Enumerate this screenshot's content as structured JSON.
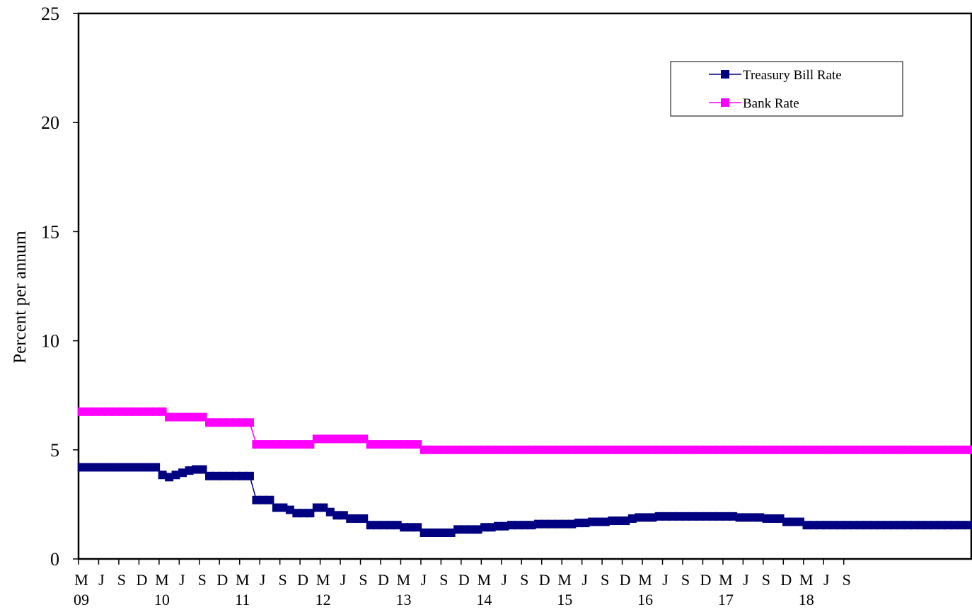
{
  "chart_data": {
    "type": "line",
    "title": "",
    "xlabel": "",
    "ylabel": "Percent per annum",
    "ylim": [
      0,
      25
    ],
    "yticks": [
      "0",
      "5",
      "10",
      "15",
      "20",
      "25"
    ],
    "grid": false,
    "legend_position": "top-right",
    "x_start": "2009-03",
    "x_step_months": 1,
    "month_ticks": [
      "M",
      "J",
      "S",
      "D",
      "M",
      "J",
      "S",
      "D",
      "M",
      "J",
      "S",
      "D",
      "M",
      "J",
      "S",
      "D",
      "M",
      "J",
      "S",
      "D",
      "M",
      "J",
      "S",
      "D",
      "M",
      "J",
      "S",
      "D",
      "M",
      "J",
      "S",
      "D",
      "M",
      "J",
      "S",
      "D",
      "M",
      "J",
      "S"
    ],
    "year_ticks": [
      "09",
      "10",
      "11",
      "12",
      "13",
      "14",
      "15",
      "16",
      "17",
      "18"
    ],
    "series": [
      {
        "name": "Treasury Bill Rate",
        "color": "#000080",
        "marker": "square",
        "values": [
          4.2,
          4.2,
          4.2,
          4.2,
          4.2,
          4.2,
          4.2,
          4.2,
          4.2,
          4.2,
          4.2,
          4.2,
          3.85,
          3.75,
          3.85,
          3.95,
          4.05,
          4.1,
          4.1,
          3.8,
          3.8,
          3.8,
          3.8,
          3.8,
          3.8,
          3.8,
          2.7,
          2.7,
          2.7,
          2.35,
          2.35,
          2.25,
          2.1,
          2.1,
          2.1,
          2.35,
          2.35,
          2.15,
          2.0,
          2.0,
          1.85,
          1.85,
          1.85,
          1.55,
          1.55,
          1.55,
          1.55,
          1.55,
          1.45,
          1.45,
          1.45,
          1.2,
          1.2,
          1.2,
          1.2,
          1.2,
          1.35,
          1.35,
          1.35,
          1.35,
          1.45,
          1.45,
          1.5,
          1.5,
          1.55,
          1.55,
          1.55,
          1.55,
          1.6,
          1.6,
          1.6,
          1.6,
          1.6,
          1.6,
          1.65,
          1.65,
          1.7,
          1.7,
          1.7,
          1.75,
          1.75,
          1.75,
          1.85,
          1.9,
          1.9,
          1.9,
          1.95,
          1.95,
          1.95,
          1.95,
          1.95,
          1.95,
          1.95,
          1.95,
          1.95,
          1.95,
          1.95,
          1.95,
          1.9,
          1.9,
          1.9,
          1.9,
          1.85,
          1.85,
          1.85,
          1.7,
          1.7,
          1.7,
          1.55,
          1.55,
          1.55,
          1.55,
          1.55,
          1.55,
          1.55,
          1.55,
          1.55,
          1.55,
          1.55,
          1.55,
          1.55,
          1.55,
          1.55,
          1.55,
          1.55,
          1.55,
          1.55,
          1.55,
          1.55,
          1.55,
          1.55,
          1.55,
          1.55
        ]
      },
      {
        "name": "Bank Rate",
        "color": "#ff00ff",
        "marker": "square",
        "values": [
          6.75,
          6.75,
          6.75,
          6.75,
          6.75,
          6.75,
          6.75,
          6.75,
          6.75,
          6.75,
          6.75,
          6.75,
          6.75,
          6.5,
          6.5,
          6.5,
          6.5,
          6.5,
          6.5,
          6.25,
          6.25,
          6.25,
          6.25,
          6.25,
          6.25,
          6.25,
          5.25,
          5.25,
          5.25,
          5.25,
          5.25,
          5.25,
          5.25,
          5.25,
          5.25,
          5.5,
          5.5,
          5.5,
          5.5,
          5.5,
          5.5,
          5.5,
          5.5,
          5.25,
          5.25,
          5.25,
          5.25,
          5.25,
          5.25,
          5.25,
          5.25,
          5.0,
          5.0,
          5.0,
          5.0,
          5.0,
          5.0,
          5.0,
          5.0,
          5.0,
          5.0,
          5.0,
          5.0,
          5.0,
          5.0,
          5.0,
          5.0,
          5.0,
          5.0,
          5.0,
          5.0,
          5.0,
          5.0,
          5.0,
          5.0,
          5.0,
          5.0,
          5.0,
          5.0,
          5.0,
          5.0,
          5.0,
          5.0,
          5.0,
          5.0,
          5.0,
          5.0,
          5.0,
          5.0,
          5.0,
          5.0,
          5.0,
          5.0,
          5.0,
          5.0,
          5.0,
          5.0,
          5.0,
          5.0,
          5.0,
          5.0,
          5.0,
          5.0,
          5.0,
          5.0,
          5.0,
          5.0,
          5.0,
          5.0,
          5.0,
          5.0,
          5.0,
          5.0,
          5.0,
          5.0,
          5.0,
          5.0,
          5.0,
          5.0,
          5.0,
          5.0,
          5.0,
          5.0,
          5.0,
          5.0,
          5.0,
          5.0,
          5.0,
          5.0,
          5.0,
          5.0,
          5.0,
          5.0
        ]
      }
    ]
  }
}
